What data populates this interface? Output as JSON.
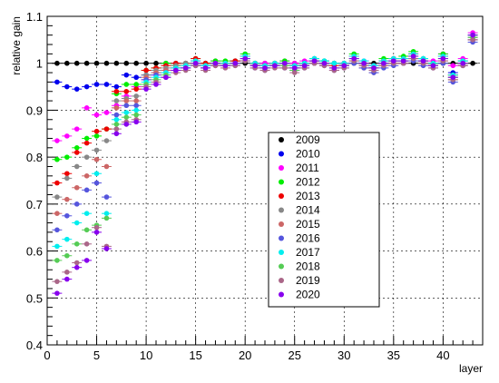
{
  "chart_data": {
    "type": "scatter",
    "title": "",
    "xlabel": "layer",
    "ylabel": "relative gain",
    "xlim": [
      0,
      44
    ],
    "ylim": [
      0.4,
      1.1
    ],
    "x_ticks": [
      "0",
      "5",
      "10",
      "15",
      "20",
      "25",
      "30",
      "35",
      "40"
    ],
    "y_ticks": [
      "0.4",
      "0.5",
      "0.6",
      "0.7",
      "0.8",
      "0.9",
      "1",
      "1.1"
    ],
    "grid": true,
    "legend": "center-right",
    "error_bar_x": 0.5,
    "error_bar_y": 0.004,
    "series": [
      {
        "name": "2009",
        "color": "#000000",
        "x": [
          1,
          2,
          3,
          4,
          5,
          6,
          7,
          8,
          9,
          10,
          11,
          12,
          13,
          14,
          15,
          16,
          17,
          18,
          19,
          20,
          21,
          22,
          23,
          24,
          25,
          26,
          27,
          28,
          29,
          30,
          31,
          32,
          33,
          34,
          35,
          36,
          37,
          38,
          39,
          40,
          41,
          42,
          43
        ],
        "y": [
          1,
          1,
          1,
          1,
          1,
          1,
          1,
          1,
          1,
          1,
          1,
          1,
          1,
          1,
          1,
          1,
          1,
          1,
          1,
          1,
          1,
          1,
          1,
          1,
          1,
          1,
          1,
          1,
          1,
          1,
          1,
          1,
          1,
          1,
          1,
          1,
          1,
          1,
          1,
          1,
          1,
          1,
          1
        ]
      },
      {
        "name": "2010",
        "color": "#0000ee",
        "x": [
          1,
          2,
          3,
          4,
          5,
          6,
          7,
          8,
          9,
          10,
          11,
          12,
          13,
          14,
          15,
          16,
          17,
          18,
          19,
          20,
          21,
          22,
          23,
          24,
          25,
          26,
          27,
          28,
          29,
          30,
          31,
          32,
          33,
          34,
          35,
          36,
          37,
          38,
          39,
          40,
          41,
          42,
          43
        ],
        "y": [
          0.96,
          0.95,
          0.945,
          0.95,
          0.955,
          0.955,
          0.95,
          0.975,
          0.97,
          0.975,
          0.98,
          0.985,
          0.99,
          0.99,
          0.995,
          0.995,
          1.0,
          1.0,
          1.005,
          1.01,
          1.0,
          0.995,
          1.0,
          1.0,
          0.995,
          1.0,
          1.005,
          1.005,
          1.0,
          1.0,
          1.01,
          1.0,
          0.995,
          1.0,
          1.005,
          1.005,
          1.01,
          1.005,
          1.0,
          1.015,
          0.98,
          1.005,
          1.05
        ]
      },
      {
        "name": "2011",
        "color": "#ff00ff",
        "x": [
          1,
          2,
          3,
          4,
          5,
          6,
          7,
          8,
          9,
          10,
          11,
          12,
          13,
          14,
          15,
          16,
          17,
          18,
          19,
          20,
          21,
          22,
          23,
          24,
          25,
          26,
          27,
          28,
          29,
          30,
          31,
          32,
          33,
          34,
          35,
          36,
          37,
          38,
          39,
          40,
          41,
          42,
          43
        ],
        "y": [
          0.835,
          0.845,
          0.86,
          0.905,
          0.89,
          0.895,
          0.91,
          0.93,
          0.95,
          0.965,
          0.975,
          0.985,
          0.99,
          1.0,
          1.005,
          1.0,
          1.005,
          1.0,
          1.005,
          1.015,
          0.995,
          1.0,
          1.0,
          1.005,
          1.0,
          1.005,
          1.01,
          1.0,
          1.0,
          1.0,
          1.015,
          1.005,
          0.995,
          1.005,
          1.01,
          1.01,
          1.02,
          1.01,
          1.005,
          1.02,
          0.995,
          1.01,
          1.065
        ]
      },
      {
        "name": "2012",
        "color": "#00ee00",
        "x": [
          1,
          2,
          3,
          4,
          5,
          6,
          7,
          8,
          9,
          10,
          11,
          12,
          13,
          14,
          15,
          16,
          17,
          18,
          19,
          20,
          21,
          22,
          23,
          24,
          25,
          26,
          27,
          28,
          29,
          30,
          31,
          32,
          33,
          34,
          35,
          36,
          37,
          38,
          39,
          40,
          41,
          42,
          43
        ],
        "y": [
          0.795,
          0.8,
          0.82,
          0.84,
          0.845,
          0.86,
          0.935,
          0.955,
          0.955,
          0.985,
          0.99,
          1.0,
          0.995,
          1.0,
          1.01,
          1.0,
          1.005,
          1.005,
          1.005,
          1.02,
          1.0,
          0.99,
          1.0,
          1.005,
          0.99,
          1.0,
          1.01,
          1.005,
          1.0,
          0.995,
          1.02,
          1.0,
          0.99,
          1.01,
          1.01,
          1.015,
          1.025,
          1.01,
          1.0,
          1.02,
          0.975,
          1.005,
          1.06
        ]
      },
      {
        "name": "2013",
        "color": "#ee0000",
        "x": [
          1,
          2,
          3,
          4,
          5,
          6,
          7,
          8,
          9,
          10,
          11,
          12,
          13,
          14,
          15,
          16,
          17,
          18,
          19,
          20,
          21,
          22,
          23,
          24,
          25,
          26,
          27,
          28,
          29,
          30,
          31,
          32,
          33,
          34,
          35,
          36,
          37,
          38,
          39,
          40,
          41,
          42,
          43
        ],
        "y": [
          0.745,
          0.765,
          0.81,
          0.83,
          0.855,
          0.86,
          0.94,
          0.94,
          0.945,
          0.985,
          0.99,
          0.995,
          1.0,
          1.0,
          1.01,
          1.0,
          1.0,
          1.0,
          1.005,
          1.015,
          1.0,
          0.995,
          1.0,
          1.0,
          0.995,
          1.0,
          1.005,
          1.0,
          0.995,
          1.0,
          1.015,
          1.0,
          0.99,
          1.005,
          1.01,
          1.01,
          1.02,
          1.005,
          1.0,
          1.015,
          0.975,
          1.0,
          1.06
        ]
      },
      {
        "name": "2014",
        "color": "#888888",
        "x": [
          1,
          2,
          3,
          4,
          5,
          6,
          7,
          8,
          9,
          10,
          11,
          12,
          13,
          14,
          15,
          16,
          17,
          18,
          19,
          20,
          21,
          22,
          23,
          24,
          25,
          26,
          27,
          28,
          29,
          30,
          31,
          32,
          33,
          34,
          35,
          36,
          37,
          38,
          39,
          40,
          41,
          42,
          43
        ],
        "y": [
          0.715,
          0.755,
          0.78,
          0.8,
          0.815,
          0.835,
          0.92,
          0.925,
          0.93,
          0.975,
          0.985,
          0.99,
          0.995,
          1.0,
          1.005,
          0.995,
          1.0,
          1.0,
          1.0,
          1.01,
          0.995,
          0.99,
          1.0,
          1.0,
          0.99,
          1.0,
          1.005,
          1.0,
          0.99,
          0.995,
          1.01,
          0.995,
          0.985,
          1.0,
          1.005,
          1.005,
          1.015,
          1.005,
          0.995,
          1.01,
          0.97,
          1.0,
          1.055
        ]
      },
      {
        "name": "2015",
        "color": "#cc6666",
        "x": [
          1,
          2,
          3,
          4,
          5,
          6,
          7,
          8,
          9,
          10,
          11,
          12,
          13,
          14,
          15,
          16,
          17,
          18,
          19,
          20,
          21,
          22,
          23,
          24,
          25,
          26,
          27,
          28,
          29,
          30,
          31,
          32,
          33,
          34,
          35,
          36,
          37,
          38,
          39,
          40,
          41,
          42,
          43
        ],
        "y": [
          0.68,
          0.71,
          0.735,
          0.76,
          0.795,
          0.78,
          0.905,
          0.92,
          0.92,
          0.97,
          0.98,
          0.985,
          0.99,
          0.995,
          1.0,
          0.99,
          0.995,
          1.0,
          1.0,
          1.01,
          0.995,
          0.985,
          0.995,
          0.995,
          0.985,
          0.995,
          1.0,
          0.995,
          0.985,
          0.995,
          1.005,
          0.99,
          0.98,
          0.995,
          1.0,
          1.0,
          1.01,
          1.0,
          0.995,
          1.005,
          0.965,
          0.995,
          1.05
        ]
      },
      {
        "name": "2016",
        "color": "#5555dd",
        "x": [
          1,
          2,
          3,
          4,
          5,
          6,
          7,
          8,
          9,
          10,
          11,
          12,
          13,
          14,
          15,
          16,
          17,
          18,
          19,
          20,
          21,
          22,
          23,
          24,
          25,
          26,
          27,
          28,
          29,
          30,
          31,
          32,
          33,
          34,
          35,
          36,
          37,
          38,
          39,
          40,
          41,
          42,
          43
        ],
        "y": [
          0.645,
          0.675,
          0.7,
          0.73,
          0.745,
          0.715,
          0.89,
          0.91,
          0.91,
          0.965,
          0.975,
          0.98,
          0.985,
          0.99,
          0.995,
          0.99,
          0.995,
          0.995,
          0.995,
          1.005,
          0.99,
          0.985,
          0.995,
          0.99,
          0.985,
          0.99,
          1.0,
          0.995,
          0.985,
          0.99,
          1.0,
          0.99,
          0.98,
          0.99,
          0.995,
          1.0,
          1.005,
          0.995,
          0.99,
          1.0,
          0.96,
          0.995,
          1.045
        ]
      },
      {
        "name": "2017",
        "color": "#00eeee",
        "x": [
          1,
          2,
          3,
          4,
          5,
          6,
          7,
          8,
          9,
          10,
          11,
          12,
          13,
          14,
          15,
          16,
          17,
          18,
          19,
          20,
          21,
          22,
          23,
          24,
          25,
          26,
          27,
          28,
          29,
          30,
          31,
          32,
          33,
          34,
          35,
          36,
          37,
          38,
          39,
          40,
          41,
          42,
          43
        ],
        "y": [
          0.61,
          0.625,
          0.66,
          0.68,
          0.765,
          0.68,
          0.88,
          0.895,
          0.9,
          0.96,
          0.97,
          0.98,
          0.99,
          0.995,
          1.005,
          0.995,
          1.0,
          1.0,
          1.0,
          1.015,
          1.0,
          0.995,
          1.0,
          1.0,
          0.995,
          1.0,
          1.01,
          1.005,
          1.0,
          1.0,
          1.015,
          1.005,
          0.995,
          1.005,
          1.01,
          1.01,
          1.02,
          1.01,
          1.0,
          1.015,
          0.975,
          1.005,
          1.06
        ]
      },
      {
        "name": "2018",
        "color": "#55cc55",
        "x": [
          1,
          2,
          3,
          4,
          5,
          6,
          7,
          8,
          9,
          10,
          11,
          12,
          13,
          14,
          15,
          16,
          17,
          18,
          19,
          20,
          21,
          22,
          23,
          24,
          25,
          26,
          27,
          28,
          29,
          30,
          31,
          32,
          33,
          34,
          35,
          36,
          37,
          38,
          39,
          40,
          41,
          42,
          43
        ],
        "y": [
          0.58,
          0.59,
          0.615,
          0.645,
          0.655,
          0.67,
          0.87,
          0.885,
          0.89,
          0.955,
          0.965,
          0.975,
          0.985,
          0.99,
          1.0,
          0.99,
          1.0,
          0.995,
          1.0,
          1.01,
          0.995,
          0.99,
          0.995,
          0.995,
          0.985,
          0.995,
          1.005,
          1.0,
          0.99,
          0.995,
          1.01,
          1.0,
          0.99,
          1.0,
          1.005,
          1.005,
          1.015,
          1.005,
          0.995,
          1.01,
          0.97,
          1.0,
          1.055
        ]
      },
      {
        "name": "2019",
        "color": "#aa6688",
        "x": [
          1,
          2,
          3,
          4,
          5,
          6,
          7,
          8,
          9,
          10,
          11,
          12,
          13,
          14,
          15,
          16,
          17,
          18,
          19,
          20,
          21,
          22,
          23,
          24,
          25,
          26,
          27,
          28,
          29,
          30,
          31,
          32,
          33,
          34,
          35,
          36,
          37,
          38,
          39,
          40,
          41,
          42,
          43
        ],
        "y": [
          0.535,
          0.555,
          0.575,
          0.615,
          0.65,
          0.61,
          0.86,
          0.875,
          0.88,
          0.95,
          0.96,
          0.97,
          0.98,
          0.985,
          0.995,
          0.985,
          0.995,
          0.99,
          0.995,
          1.005,
          0.99,
          0.985,
          0.99,
          0.99,
          0.98,
          0.99,
          1.0,
          0.995,
          0.985,
          0.99,
          1.005,
          0.995,
          0.985,
          0.995,
          1.0,
          1.0,
          1.01,
          1.0,
          0.99,
          1.005,
          0.965,
          0.995,
          1.05
        ]
      },
      {
        "name": "2020",
        "color": "#8800ee",
        "x": [
          1,
          2,
          3,
          4,
          5,
          6,
          7,
          8,
          9,
          10,
          11,
          12,
          13,
          14,
          15,
          16,
          17,
          18,
          19,
          20,
          21,
          22,
          23,
          24,
          25,
          26,
          27,
          28,
          29,
          30,
          31,
          32,
          33,
          34,
          35,
          36,
          37,
          38,
          39,
          40,
          41,
          42,
          43
        ],
        "y": [
          0.51,
          0.54,
          0.565,
          0.58,
          0.64,
          0.605,
          0.85,
          0.87,
          0.875,
          0.945,
          0.955,
          0.97,
          0.985,
          0.99,
          1.0,
          0.99,
          1.0,
          0.995,
          1.0,
          1.01,
          0.995,
          0.99,
          0.995,
          1.0,
          0.99,
          0.995,
          1.005,
          1.0,
          0.99,
          0.995,
          1.01,
          1.0,
          0.99,
          1.0,
          1.005,
          1.005,
          1.015,
          1.005,
          0.995,
          1.01,
          0.97,
          1.0,
          1.06
        ]
      }
    ]
  }
}
